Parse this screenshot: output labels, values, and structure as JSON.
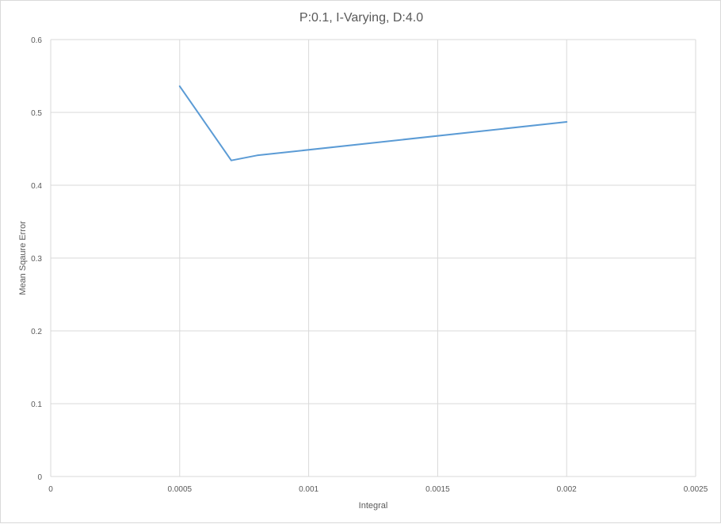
{
  "chart_data": {
    "type": "line",
    "title": "P:0.1, I-Varying, D:4.0",
    "xlabel": "Integral",
    "ylabel": "Mean Sqaure Error",
    "xlim": [
      0,
      0.0025
    ],
    "ylim": [
      0,
      0.6
    ],
    "x_ticks": [
      "0",
      "0.0005",
      "0.001",
      "0.0015",
      "0.002",
      "0.0025"
    ],
    "y_ticks": [
      "0",
      "0.1",
      "0.2",
      "0.3",
      "0.4",
      "0.5",
      "0.6"
    ],
    "grid": true,
    "series": [
      {
        "color": "#5b9bd5",
        "x": [
          0.0005,
          0.0007,
          0.0008,
          0.002
        ],
        "y": [
          0.536,
          0.434,
          0.441,
          0.487
        ]
      }
    ]
  }
}
